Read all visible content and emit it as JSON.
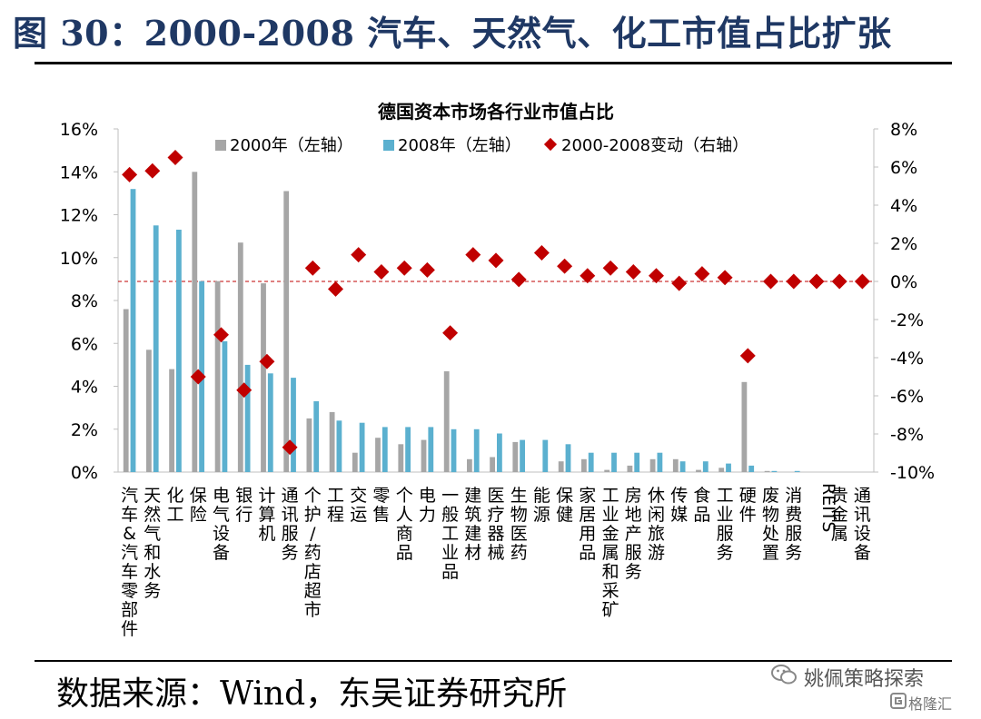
{
  "header": {
    "title": "图 30：2000-2008 汽车、天然气、化工市值占比扩张"
  },
  "footer": {
    "source": "数据来源：Wind，东吴证券研究所"
  },
  "watermark": {
    "account": "姚佩策略探索",
    "site": "格隆汇"
  },
  "colors": {
    "series2000": "#a6a6a6",
    "series2008": "#5bb0cf",
    "change": "#c00000",
    "title": "#1f3864"
  },
  "chart_data": {
    "type": "bar",
    "title": "德国资本市场各行业市值占比",
    "legend_position": "top",
    "categories": [
      "汽车&汽车零部件",
      "天然气和水务",
      "化工",
      "保险",
      "电气设备",
      "银行",
      "计算机",
      "通讯服务",
      "个护/药店超市",
      "工程",
      "交运",
      "零售",
      "个人商品",
      "电力",
      "一般工业品",
      "建筑建材",
      "医疗器械",
      "生物医药",
      "能源",
      "保健",
      "家居用品",
      "工业金属和采矿",
      "房地产服务",
      "休闲旅游",
      "传媒",
      "食品",
      "工业服务",
      "硬件",
      "废物处置",
      "消费服务",
      "REITS",
      "贵金属",
      "通讯设备"
    ],
    "y_left": {
      "min": 0,
      "max": 16,
      "ticks": [
        "0%",
        "2%",
        "4%",
        "6%",
        "8%",
        "10%",
        "12%",
        "14%",
        "16%"
      ]
    },
    "y_right": {
      "min": -10,
      "max": 8,
      "ticks": [
        "-10%",
        "-8%",
        "-6%",
        "-4%",
        "-2%",
        "0%",
        "2%",
        "4%",
        "6%",
        "8%"
      ]
    },
    "series": [
      {
        "name": "2000年（左轴）",
        "type": "bar",
        "axis": "left",
        "values": [
          7.6,
          5.7,
          4.8,
          14.0,
          8.9,
          10.7,
          8.8,
          13.1,
          2.5,
          2.8,
          0.9,
          1.6,
          1.3,
          1.5,
          4.7,
          0.6,
          0.7,
          1.4,
          0.0,
          0.5,
          0.6,
          0.1,
          0.3,
          0.6,
          0.6,
          0.1,
          0.2,
          4.2,
          0.05,
          0.0,
          0.0,
          0.0,
          0.0
        ]
      },
      {
        "name": "2008年（左轴）",
        "type": "bar",
        "axis": "left",
        "values": [
          13.2,
          11.5,
          11.3,
          8.9,
          6.1,
          5.0,
          4.6,
          4.4,
          3.3,
          2.4,
          2.3,
          2.1,
          2.1,
          2.1,
          2.0,
          2.0,
          1.8,
          1.5,
          1.5,
          1.3,
          0.9,
          0.9,
          0.9,
          0.9,
          0.5,
          0.5,
          0.4,
          0.3,
          0.05,
          0.05,
          0.0,
          0.0,
          0.0
        ]
      },
      {
        "name": "2000-2008变动（右轴）",
        "type": "scatter",
        "axis": "right",
        "values": [
          5.6,
          5.8,
          6.5,
          -5.0,
          -2.8,
          -5.7,
          -4.2,
          -8.7,
          0.7,
          -0.4,
          1.4,
          0.5,
          0.7,
          0.6,
          -2.7,
          1.4,
          1.1,
          0.1,
          1.5,
          0.8,
          0.3,
          0.7,
          0.5,
          0.3,
          -0.1,
          0.4,
          0.2,
          -3.9,
          0.0,
          0.0,
          0.0,
          0.0,
          0.0
        ]
      }
    ],
    "zero_line": {
      "axis": "right",
      "value": 0,
      "style": "dashed"
    },
    "grid": false
  }
}
